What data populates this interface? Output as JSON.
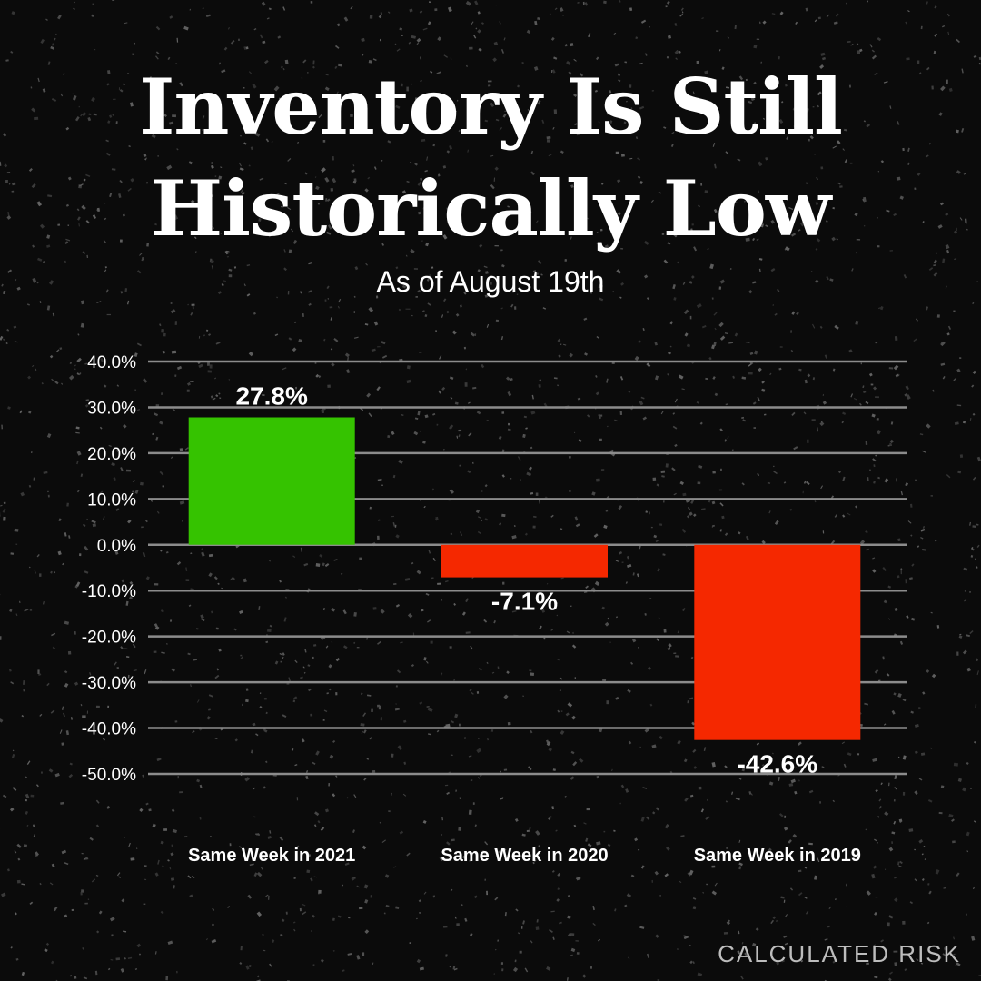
{
  "title_lines": [
    "Inventory Is Still",
    "Historically Low"
  ],
  "subtitle": "As of August 19th",
  "source": "CALCULATED RISK",
  "colors": {
    "positive": "#35c300",
    "negative": "#f52800",
    "background": "#0b0b0b",
    "gridline": "#8c8c8c"
  },
  "chart_data": {
    "type": "bar",
    "title": "Inventory Is Still Historically Low",
    "subtitle": "As of August 19th",
    "categories": [
      "Same Week in 2021",
      "Same Week in 2020",
      "Same Week in 2019"
    ],
    "values": [
      27.8,
      -7.1,
      -42.6
    ],
    "data_labels": [
      "27.8%",
      "-7.1%",
      "-42.6%"
    ],
    "ylim": [
      -50,
      40
    ],
    "yticks": [
      40,
      30,
      20,
      10,
      0,
      -10,
      -20,
      -30,
      -40,
      -50
    ],
    "ytick_labels": [
      "40.0%",
      "30.0%",
      "20.0%",
      "10.0%",
      "0.0%",
      "-10.0%",
      "-20.0%",
      "-30.0%",
      "-40.0%",
      "-50.0%"
    ],
    "grid": true,
    "legend": "none",
    "xlabel": "",
    "ylabel": ""
  }
}
